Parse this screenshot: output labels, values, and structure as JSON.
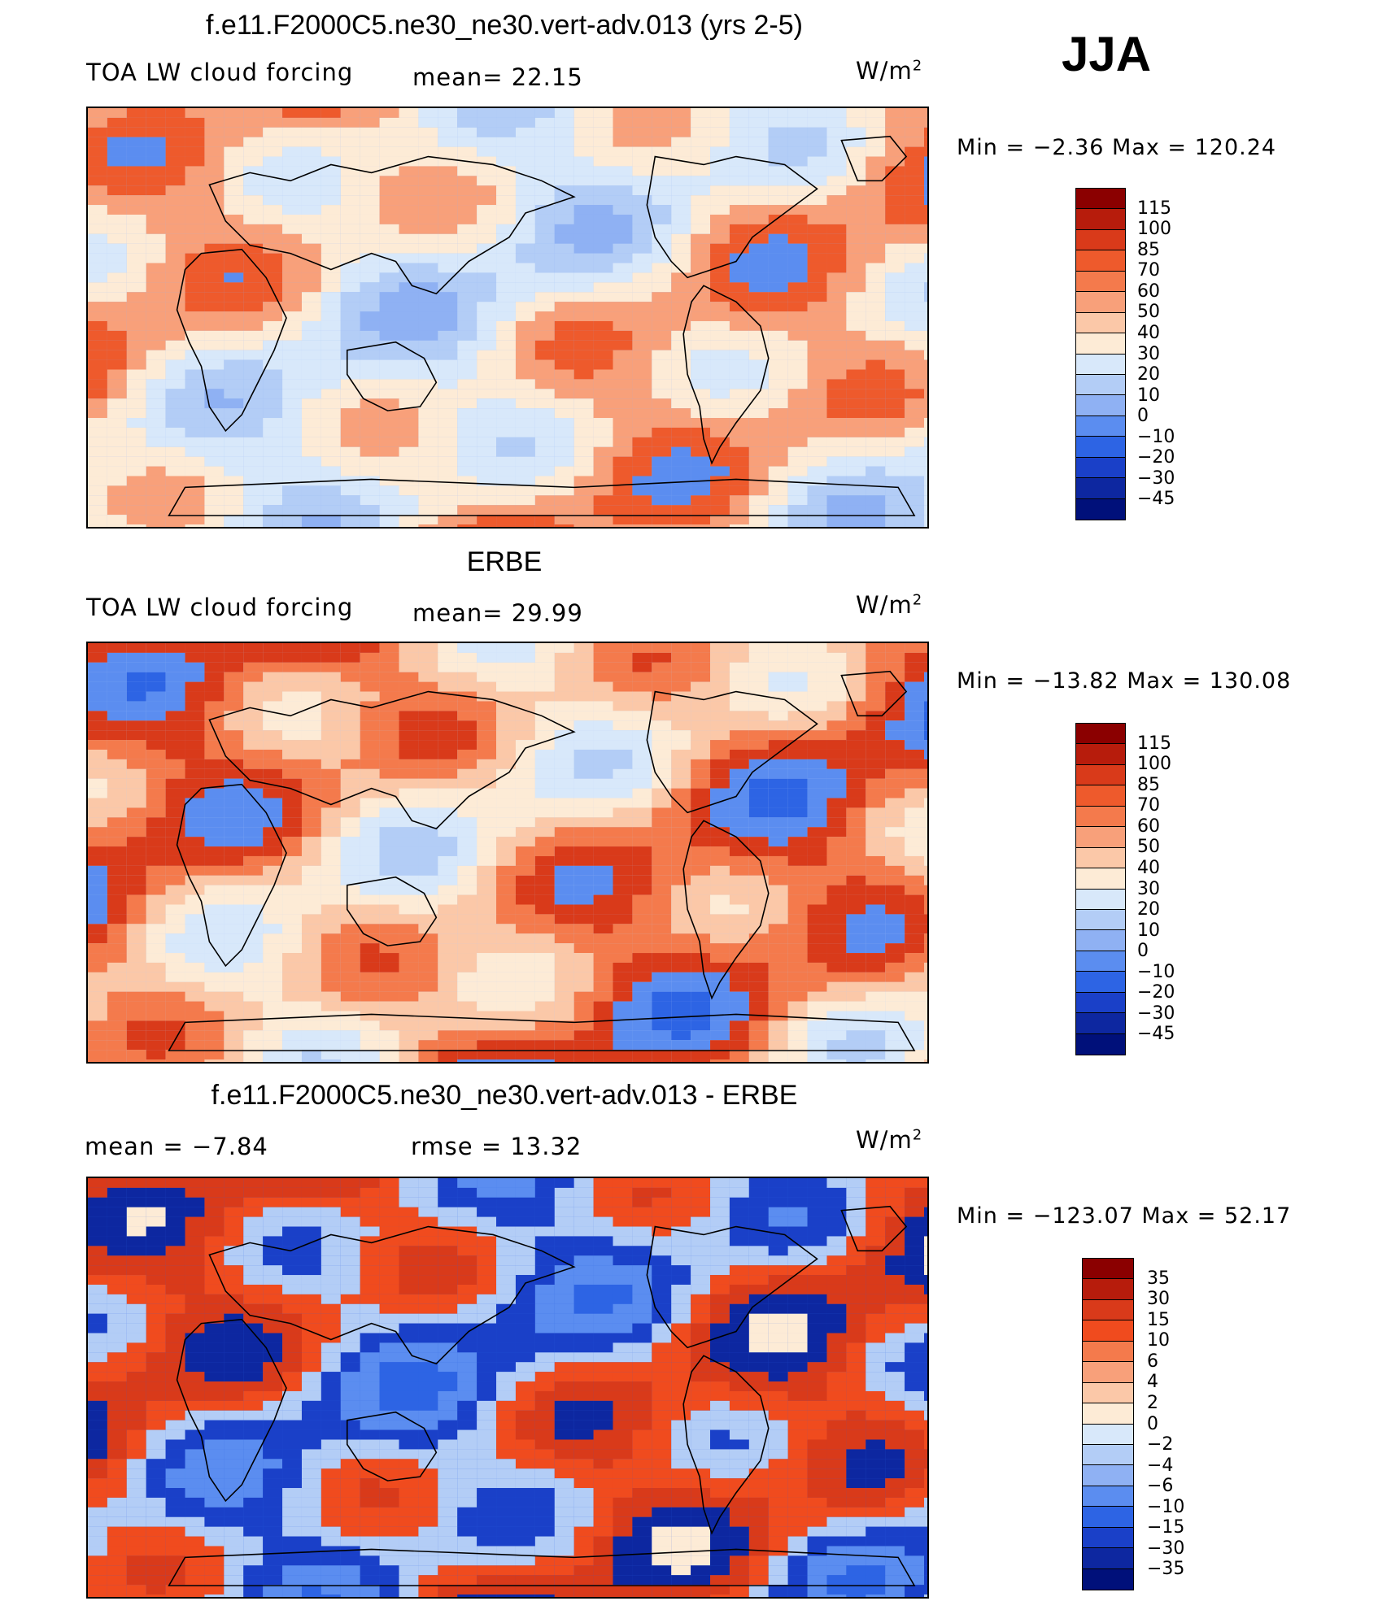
{
  "season": "JJA",
  "units": "W/m",
  "units_sup": "2",
  "panels": [
    {
      "title": "f.e11.F2000C5.ne30_ne30.vert-adv.013 (yrs 2-5)",
      "variable": "TOA LW cloud forcing",
      "stat": "mean=  22.15",
      "minmax": "Min =  −2.36 Max = 120.24",
      "colorbar": {
        "labels": [
          "115",
          "100",
          "85",
          "70",
          "60",
          "50",
          "40",
          "30",
          "20",
          "10",
          "0",
          "−10",
          "−20",
          "−30",
          "−45"
        ],
        "colors": [
          "#8b0000",
          "#b71c0c",
          "#d93a1a",
          "#ee5a2c",
          "#f47a4c",
          "#f8a07a",
          "#fbc8a8",
          "#fdebd6",
          "#d8e8fa",
          "#b3cdf6",
          "#8fb1f3",
          "#5b8df0",
          "#2d64e4",
          "#1a40c8",
          "#0d27a0",
          "#00107a"
        ]
      },
      "map_palette": [
        "#8fb1f3",
        "#b3cdf6",
        "#d8e8fa",
        "#fdebd6",
        "#f8a07a",
        "#ee5a2c",
        "#5b8df0"
      ]
    },
    {
      "title": "ERBE",
      "variable": "TOA LW cloud forcing",
      "stat": "mean=  29.99",
      "minmax": "Min = −13.82 Max = 130.08",
      "colorbar": {
        "labels": [
          "115",
          "100",
          "85",
          "70",
          "60",
          "50",
          "40",
          "30",
          "20",
          "10",
          "0",
          "−10",
          "−20",
          "−30",
          "−45"
        ],
        "colors": [
          "#8b0000",
          "#b71c0c",
          "#d93a1a",
          "#ee5a2c",
          "#f47a4c",
          "#f8a07a",
          "#fbc8a8",
          "#fdebd6",
          "#d8e8fa",
          "#b3cdf6",
          "#8fb1f3",
          "#5b8df0",
          "#2d64e4",
          "#1a40c8",
          "#0d27a0",
          "#00107a"
        ]
      },
      "map_palette": [
        "#b3cdf6",
        "#d8e8fa",
        "#fdebd6",
        "#fbc8a8",
        "#f47a4c",
        "#d93a1a",
        "#5b8df0",
        "#2d64e4"
      ]
    },
    {
      "title": "f.e11.F2000C5.ne30_ne30.vert-adv.013 - ERBE",
      "stat_left": "mean =  −7.84",
      "stat_right": "rmse =  13.32",
      "minmax": "Min = −123.07 Max =  52.17",
      "colorbar": {
        "labels": [
          "35",
          "30",
          "15",
          "10",
          "6",
          "4",
          "2",
          "0",
          "−2",
          "−4",
          "−6",
          "−10",
          "−15",
          "−30",
          "−35"
        ],
        "colors": [
          "#8b0000",
          "#b71c0c",
          "#d93a1a",
          "#f04b1e",
          "#f47a4c",
          "#f8a07a",
          "#fbc8a8",
          "#fdebd6",
          "#d8e8fa",
          "#b3cdf6",
          "#8fb1f3",
          "#5b8df0",
          "#2d64e4",
          "#1a40c8",
          "#0d27a0",
          "#00107a"
        ]
      },
      "map_palette": [
        "#2d64e4",
        "#5b8df0",
        "#1a40c8",
        "#b3cdf6",
        "#f04b1e",
        "#d93a1a",
        "#0d27a0",
        "#fdebd6"
      ]
    }
  ]
}
